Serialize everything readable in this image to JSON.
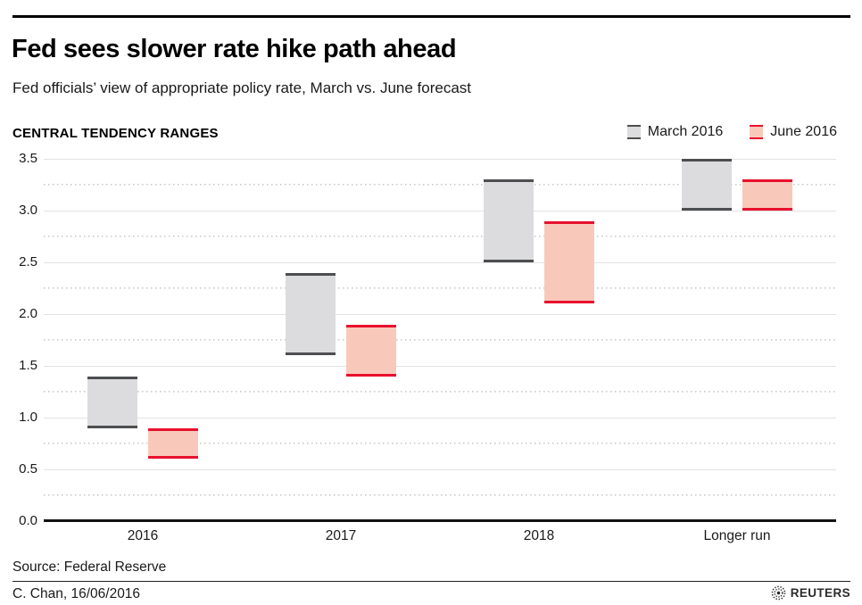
{
  "header": {
    "title": "Fed sees slower rate hike path ahead",
    "subtitle": "Fed officials’ view of appropriate policy rate, March vs. June forecast"
  },
  "section_label": "CENTRAL TENDENCY RANGES",
  "chart_data": {
    "type": "bar",
    "subtype": "floating-range-columns",
    "title": "CENTRAL TENDENCY RANGES",
    "categories": [
      "2016",
      "2017",
      "2018",
      "Longer run"
    ],
    "series": [
      {
        "name": "March 2016",
        "ranges": [
          [
            0.9,
            1.4
          ],
          [
            1.6,
            2.4
          ],
          [
            2.5,
            3.3
          ],
          [
            3.0,
            3.5
          ]
        ],
        "fill": "#dcdcde",
        "edge": "#4d4e50"
      },
      {
        "name": "June 2016",
        "ranges": [
          [
            0.6,
            0.9
          ],
          [
            1.4,
            1.9
          ],
          [
            2.1,
            2.9
          ],
          [
            3.0,
            3.3
          ]
        ],
        "fill": "#f8c9bb",
        "edge": "#e8112d"
      }
    ],
    "xlabel": "",
    "ylabel": "",
    "ylim": [
      0,
      3.5
    ],
    "y_tick_labels": [
      "0.0",
      "0.5",
      "1.0",
      "1.5",
      "2.0",
      "2.5",
      "3.0",
      "3.5"
    ],
    "minor_grid_step": 0.25,
    "grid": "major solid every 0.5, minor dotted every 0.25",
    "legend_position": "top-right"
  },
  "footer": {
    "source": "Source: Federal Reserve",
    "credit": "C. Chan, 16/06/2016",
    "brand": "REUTERS"
  }
}
